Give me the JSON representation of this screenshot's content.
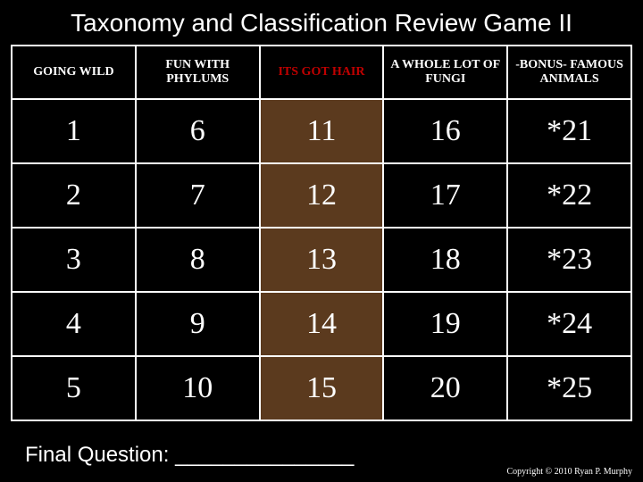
{
  "title": "Taxonomy and Classification Review Game II",
  "board": {
    "type": "table",
    "background_color": "#000000",
    "border_color": "#ffffff",
    "shaded_column_index": 2,
    "shaded_color": "#5b3a1e",
    "header_text_color": "#ffffff",
    "header_red_color": "#c00000",
    "cell_text_color": "#ffffff",
    "cell_font": "Times New Roman",
    "cell_fontsize": 34,
    "header_fontsize": 14,
    "columns": [
      {
        "label": "GOING WILD",
        "red": false
      },
      {
        "label": "FUN WITH PHYLUMS",
        "red": false
      },
      {
        "label": "ITS GOT HAIR",
        "red": true
      },
      {
        "label": "A WHOLE LOT OF FUNGI",
        "red": false
      },
      {
        "label": "-BONUS- FAMOUS ANIMALS",
        "red": false
      }
    ],
    "rows": [
      [
        "1",
        "6",
        "11",
        "16",
        "*21"
      ],
      [
        "2",
        "7",
        "12",
        "17",
        "*22"
      ],
      [
        "3",
        "8",
        "13",
        "18",
        "*23"
      ],
      [
        "4",
        "9",
        "14",
        "19",
        "*24"
      ],
      [
        "5",
        "10",
        "15",
        "20",
        "*25"
      ]
    ]
  },
  "final_label": "Final Question: _______________",
  "copyright": "Copyright © 2010 Ryan P. Murphy"
}
